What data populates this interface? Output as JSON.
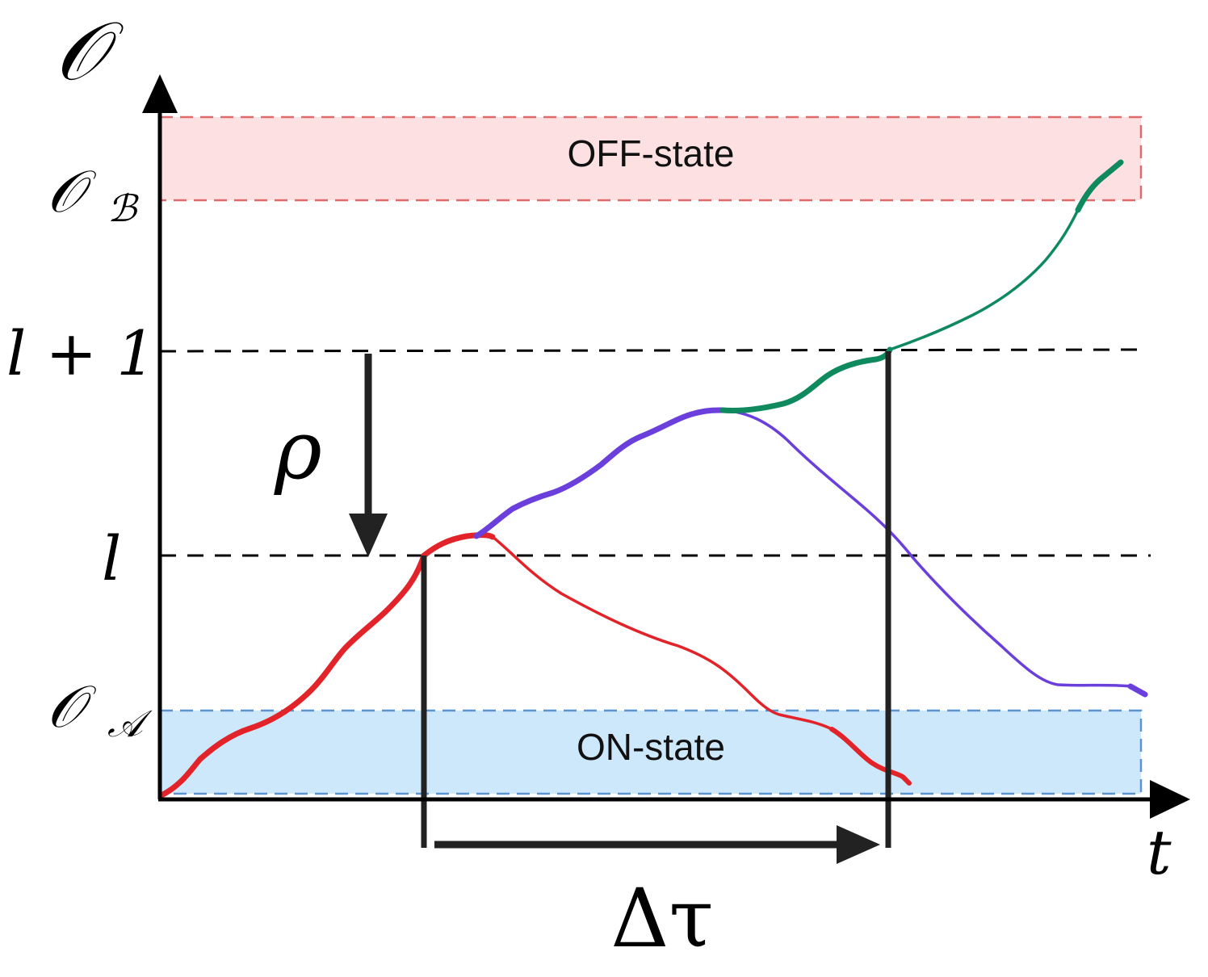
{
  "axes": {
    "y_axis_label": "𝒪",
    "x_axis_label": "t"
  },
  "levels": {
    "o_b": {
      "main": "𝒪",
      "sub": "ℬ"
    },
    "l_plus_1": "l + 1",
    "l": "l",
    "o_a": {
      "main": "𝒪",
      "sub": "𝒜"
    }
  },
  "regions": {
    "off_state": {
      "label": "OFF-state",
      "fill": "#fde0e2",
      "border": "#e06a6a"
    },
    "on_state": {
      "label": "ON-state",
      "fill": "#cde7fb",
      "border": "#5b95cf"
    }
  },
  "annotations": {
    "rho": "ρ",
    "delta_tau": "Δτ"
  },
  "trajectories": {
    "red": {
      "color": "#e2242a"
    },
    "purple": {
      "color": "#6a3fdc"
    },
    "green": {
      "color": "#0f8a5f"
    }
  }
}
